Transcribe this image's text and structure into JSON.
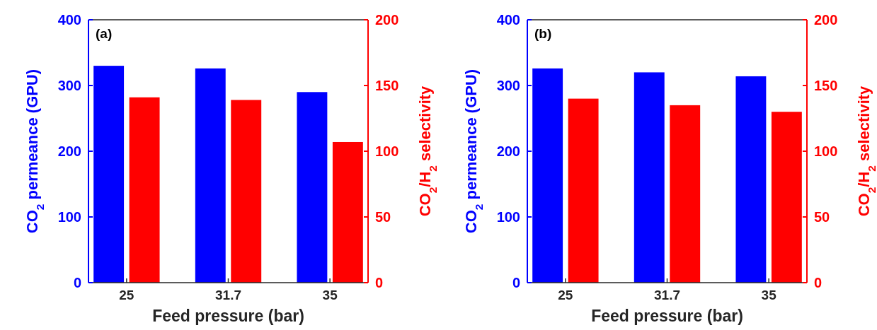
{
  "chart_data": [
    {
      "type": "bar",
      "categories": [
        "25",
        "31.7",
        "35"
      ],
      "xlabel": "Feed pressure (bar)",
      "ylabel": "CO$_{2}$ permeance (GPU)",
      "y2label": "CO$_{2}$/H$_{2}$ selectivity",
      "ylim": [
        0,
        400
      ],
      "yticks": [
        0,
        100,
        200,
        300,
        400
      ],
      "y2lim": [
        0,
        200
      ],
      "y2ticks": [
        0,
        50,
        100,
        150,
        200
      ],
      "annotations": [
        "(a)"
      ],
      "series": [
        {
          "color": "#0000ff",
          "values": [
            330,
            326,
            290
          ]
        },
        {
          "color": "#ff0000",
          "values": [
            141,
            139,
            107
          ],
          "axis": "y2"
        }
      ]
    },
    {
      "type": "bar",
      "categories": [
        "25",
        "31.7",
        "35"
      ],
      "xlabel": "Feed pressure (bar)",
      "ylabel": "CO$_{2}$ permeance (GPU)",
      "y2label": "CO$_{2}$/H$_{2}$ selectivity",
      "ylim": [
        0,
        400
      ],
      "yticks": [
        0,
        100,
        200,
        300,
        400
      ],
      "y2lim": [
        0,
        200
      ],
      "y2ticks": [
        0,
        50,
        100,
        150,
        200
      ],
      "annotations": [
        "(b)"
      ],
      "series": [
        {
          "color": "#0000ff",
          "values": [
            326,
            320,
            314
          ]
        },
        {
          "color": "#ff0000",
          "values": [
            140,
            135,
            130
          ],
          "axis": "y2"
        }
      ]
    }
  ]
}
